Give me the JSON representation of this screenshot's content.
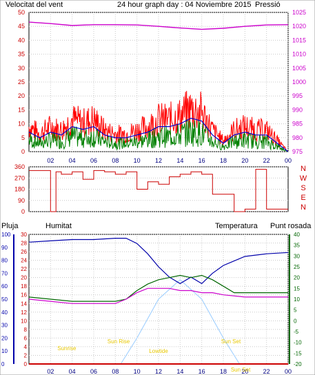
{
  "header": {
    "left_label": "Velocitat del vent",
    "title": "24 hour graph day : 04 Noviembre 2015",
    "right_label": "Pressió"
  },
  "colors": {
    "wind": "#ff0000",
    "wind_avg": "#0000cc",
    "wind_gust": "#008000",
    "pressure": "#cc00cc",
    "direction": "#cc0000",
    "humidity": "#0000aa",
    "temperature": "#006600",
    "dewpoint": "#cc00cc",
    "rain": "#cc0000",
    "solar": "#99ccff",
    "annotation": "#e8c800"
  },
  "chart_data": [
    {
      "type": "line",
      "panel": "wind_pressure",
      "x_ticks": [
        "02",
        "04",
        "06",
        "08",
        "10",
        "12",
        "14",
        "16",
        "18",
        "20",
        "22",
        "00"
      ],
      "y_left_ticks": [
        "0",
        "5",
        "10",
        "15",
        "20",
        "25",
        "30",
        "35",
        "40",
        "45",
        "50"
      ],
      "y_right_ticks": [
        "975",
        "980",
        "985",
        "990",
        "995",
        "1000",
        "1005",
        "1010",
        "1015",
        "1020",
        "1025"
      ],
      "ylim_left": [
        0,
        50
      ],
      "ylim_right": [
        975,
        1025
      ],
      "xlim_hours": [
        0,
        24
      ],
      "series": [
        {
          "name": "Velocitat del vent",
          "x": [
            0,
            1,
            2,
            3,
            4,
            5,
            6,
            7,
            8,
            9,
            10,
            11,
            12,
            13,
            14,
            15,
            16,
            17,
            18,
            19,
            20,
            21,
            22,
            23,
            24
          ],
          "values": [
            7,
            5,
            7,
            6,
            9,
            8,
            9,
            6,
            5,
            5,
            6,
            7,
            9,
            9,
            10,
            12,
            11,
            6,
            3,
            6,
            7,
            6,
            6,
            3,
            0
          ]
        },
        {
          "name": "Pressió",
          "x": [
            0,
            2,
            4,
            6,
            8,
            10,
            12,
            14,
            16,
            18,
            20,
            22,
            24
          ],
          "values": [
            1021.5,
            1021,
            1020.3,
            1020.6,
            1020.6,
            1020.5,
            1020,
            1019.4,
            1018.9,
            1019.3,
            1020,
            1020.5,
            1020.6
          ]
        }
      ]
    },
    {
      "type": "line",
      "panel": "wind_direction",
      "y_ticks": [
        "360",
        "270",
        "180",
        "90",
        "0"
      ],
      "right_labels": [
        "N",
        "W",
        "S",
        "E",
        "N"
      ],
      "ylim": [
        0,
        360
      ],
      "series": [
        {
          "name": "direction",
          "x": [
            0,
            1.5,
            2,
            2.5,
            3,
            4,
            5,
            6,
            7,
            8,
            9,
            10,
            11,
            12,
            13,
            14,
            15,
            16,
            17,
            18,
            19,
            20,
            21,
            22,
            23,
            24
          ],
          "values": [
            330,
            330,
            0,
            320,
            300,
            320,
            260,
            330,
            320,
            300,
            320,
            180,
            240,
            220,
            280,
            300,
            320,
            300,
            140,
            140,
            0,
            20,
            340,
            20,
            20,
            20
          ]
        }
      ]
    },
    {
      "type": "line",
      "panel": "rain_humidity_temperature",
      "header_labels": {
        "rain": "Pluja",
        "humidity": "Humitat",
        "temperature": "Temperatura",
        "dewpoint": "Punt rosada"
      },
      "x_ticks": [
        "02",
        "04",
        "06",
        "08",
        "10",
        "12",
        "14",
        "16",
        "18",
        "20",
        "22",
        "00"
      ],
      "y_rain_ticks": [
        "0",
        "2",
        "4",
        "6",
        "8",
        "10",
        "12",
        "14",
        "16",
        "18",
        "20",
        "22",
        "24",
        "26",
        "28",
        "30"
      ],
      "y_humidity_ticks": [
        "0",
        "10",
        "20",
        "30",
        "40",
        "50",
        "60",
        "70",
        "80",
        "90",
        "100"
      ],
      "y_temp_ticks": [
        "-20",
        "-15",
        "-10",
        "-5",
        "0",
        "5",
        "10",
        "15",
        "20",
        "25",
        "30",
        "35",
        "40"
      ],
      "ylim_rain": [
        0,
        30
      ],
      "ylim_humidity": [
        0,
        100
      ],
      "ylim_temp": [
        -20,
        40
      ],
      "annotations": [
        "Sunrise",
        "Sun Rise",
        "Lowtide",
        "Sun Set",
        "Sun Set"
      ],
      "series": [
        {
          "name": "Humitat",
          "x": [
            0,
            2,
            4,
            6,
            8,
            9,
            10,
            11,
            12,
            13,
            14,
            15,
            16,
            17,
            18,
            20,
            22,
            24
          ],
          "values": [
            94,
            95,
            96,
            96,
            97,
            97,
            93,
            85,
            75,
            67,
            62,
            67,
            62,
            70,
            76,
            83,
            85,
            86
          ]
        },
        {
          "name": "Temperatura",
          "x": [
            0,
            2,
            4,
            6,
            8,
            9,
            10,
            11,
            12,
            13,
            14,
            15,
            16,
            17,
            18,
            19,
            24
          ],
          "values": [
            11,
            10,
            9,
            9,
            9,
            10,
            14,
            17,
            19,
            20,
            21,
            20,
            21,
            19,
            16,
            13,
            13
          ]
        },
        {
          "name": "Punt rosada",
          "x": [
            0,
            2,
            4,
            6,
            8,
            9,
            10,
            11,
            12,
            13,
            14,
            15,
            16,
            17,
            18,
            20,
            24
          ],
          "values": [
            10,
            9,
            8,
            8,
            8,
            10,
            13,
            15,
            15,
            15,
            14,
            14,
            13,
            13,
            12,
            11,
            11
          ]
        },
        {
          "name": "Pluja",
          "x": [
            0,
            24
          ],
          "values": [
            0,
            0
          ]
        },
        {
          "name": "solar",
          "x": [
            8.5,
            10,
            12,
            14,
            16,
            18,
            19.5
          ],
          "values": [
            0,
            20,
            50,
            65,
            50,
            20,
            0
          ]
        }
      ]
    }
  ]
}
